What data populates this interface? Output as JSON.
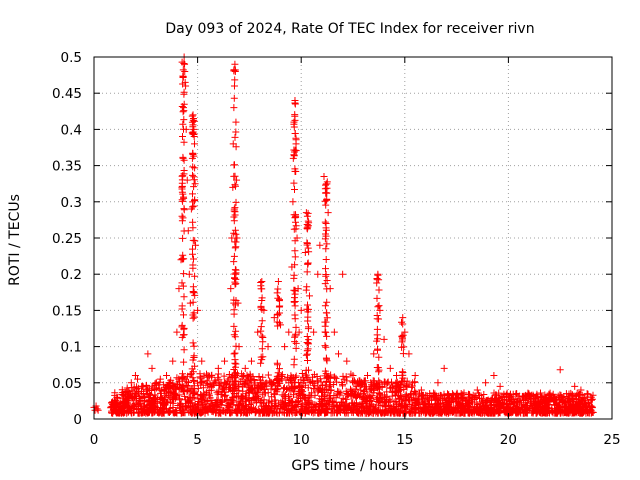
{
  "chart_data": {
    "type": "scatter",
    "title": "Day 093 of 2024, Rate Of TEC Index for receiver rivn",
    "xlabel": "GPS time / hours",
    "ylabel": "ROTI / TECUs",
    "xlim": [
      0,
      25
    ],
    "ylim": [
      0,
      0.5
    ],
    "xticks": [
      "0",
      "5",
      "10",
      "15",
      "20",
      "25"
    ],
    "yticks": [
      "0",
      "0.05",
      "0.1",
      "0.15",
      "0.2",
      "0.25",
      "0.3",
      "0.35",
      "0.4",
      "0.45",
      "0.5"
    ],
    "grid": true,
    "marker": "plus",
    "color": "#ff0000",
    "series": [
      {
        "points": [
          [
            0.0,
            0.016
          ],
          [
            0.05,
            0.012
          ],
          [
            0.1,
            0.018
          ],
          [
            0.15,
            0.014
          ],
          [
            0.2,
            0.012
          ],
          [
            0.9,
            0.02
          ],
          [
            1.0,
            0.025
          ],
          [
            1.1,
            0.03
          ],
          [
            1.2,
            0.022
          ],
          [
            1.4,
            0.028
          ],
          [
            1.6,
            0.04
          ],
          [
            1.8,
            0.05
          ],
          [
            2.0,
            0.06
          ],
          [
            2.1,
            0.055
          ],
          [
            2.3,
            0.045
          ],
          [
            2.6,
            0.09
          ],
          [
            2.8,
            0.07
          ],
          [
            3.0,
            0.05
          ],
          [
            3.2,
            0.055
          ],
          [
            3.5,
            0.06
          ],
          [
            3.8,
            0.08
          ],
          [
            4.0,
            0.12
          ],
          [
            4.1,
            0.18
          ],
          [
            4.2,
            0.22
          ],
          [
            4.25,
            0.28
          ],
          [
            4.3,
            0.36
          ],
          [
            4.32,
            0.43
          ],
          [
            4.35,
            0.5
          ],
          [
            4.37,
            0.49
          ],
          [
            4.38,
            0.48
          ],
          [
            4.4,
            0.465
          ],
          [
            4.42,
            0.46
          ],
          [
            4.45,
            0.4
          ],
          [
            4.5,
            0.33
          ],
          [
            4.55,
            0.26
          ],
          [
            4.6,
            0.2
          ],
          [
            4.65,
            0.16
          ],
          [
            4.7,
            0.29
          ],
          [
            4.75,
            0.36
          ],
          [
            4.78,
            0.42
          ],
          [
            4.8,
            0.415
          ],
          [
            4.82,
            0.4
          ],
          [
            4.85,
            0.38
          ],
          [
            4.88,
            0.325
          ],
          [
            4.9,
            0.24
          ],
          [
            5.0,
            0.15
          ],
          [
            5.2,
            0.08
          ],
          [
            5.5,
            0.06
          ],
          [
            5.8,
            0.05
          ],
          [
            6.0,
            0.07
          ],
          [
            6.3,
            0.08
          ],
          [
            6.6,
            0.18
          ],
          [
            6.65,
            0.25
          ],
          [
            6.7,
            0.32
          ],
          [
            6.72,
            0.38
          ],
          [
            6.75,
            0.43
          ],
          [
            6.78,
            0.46
          ],
          [
            6.8,
            0.49
          ],
          [
            6.82,
            0.48
          ],
          [
            6.85,
            0.41
          ],
          [
            6.88,
            0.33
          ],
          [
            6.9,
            0.25
          ],
          [
            6.95,
            0.16
          ],
          [
            7.0,
            0.1
          ],
          [
            7.3,
            0.07
          ],
          [
            7.6,
            0.08
          ],
          [
            7.9,
            0.12
          ],
          [
            8.1,
            0.19
          ],
          [
            8.2,
            0.15
          ],
          [
            8.4,
            0.1
          ],
          [
            8.7,
            0.14
          ],
          [
            8.9,
            0.19
          ],
          [
            9.0,
            0.13
          ],
          [
            9.2,
            0.1
          ],
          [
            9.4,
            0.12
          ],
          [
            9.55,
            0.21
          ],
          [
            9.6,
            0.3
          ],
          [
            9.62,
            0.36
          ],
          [
            9.65,
            0.41
          ],
          [
            9.7,
            0.44
          ],
          [
            9.72,
            0.435
          ],
          [
            9.75,
            0.38
          ],
          [
            9.8,
            0.25
          ],
          [
            9.85,
            0.18
          ],
          [
            9.9,
            0.12
          ],
          [
            10.0,
            0.15
          ],
          [
            10.2,
            0.23
          ],
          [
            10.25,
            0.285
          ],
          [
            10.3,
            0.28
          ],
          [
            10.4,
            0.17
          ],
          [
            10.6,
            0.12
          ],
          [
            10.8,
            0.2
          ],
          [
            10.9,
            0.24
          ],
          [
            11.1,
            0.335
          ],
          [
            11.2,
            0.27
          ],
          [
            11.3,
            0.285
          ],
          [
            11.4,
            0.18
          ],
          [
            11.6,
            0.12
          ],
          [
            11.8,
            0.09
          ],
          [
            12.0,
            0.2
          ],
          [
            12.2,
            0.08
          ],
          [
            12.5,
            0.06
          ],
          [
            12.9,
            0.05
          ],
          [
            13.2,
            0.06
          ],
          [
            13.5,
            0.09
          ],
          [
            13.7,
            0.2
          ],
          [
            13.8,
            0.15
          ],
          [
            14.0,
            0.11
          ],
          [
            14.3,
            0.07
          ],
          [
            14.6,
            0.06
          ],
          [
            14.9,
            0.14
          ],
          [
            15.0,
            0.12
          ],
          [
            15.2,
            0.09
          ],
          [
            15.5,
            0.06
          ],
          [
            15.8,
            0.04
          ],
          [
            16.2,
            0.035
          ],
          [
            16.6,
            0.05
          ],
          [
            16.9,
            0.07
          ],
          [
            17.3,
            0.035
          ],
          [
            17.7,
            0.03
          ],
          [
            18.1,
            0.03
          ],
          [
            18.5,
            0.04
          ],
          [
            18.9,
            0.05
          ],
          [
            19.3,
            0.06
          ],
          [
            19.6,
            0.045
          ],
          [
            20.0,
            0.03
          ],
          [
            20.4,
            0.035
          ],
          [
            20.8,
            0.03
          ],
          [
            21.2,
            0.025
          ],
          [
            21.6,
            0.03
          ],
          [
            22.0,
            0.03
          ],
          [
            22.5,
            0.068
          ],
          [
            22.8,
            0.035
          ],
          [
            23.2,
            0.045
          ],
          [
            23.5,
            0.04
          ],
          [
            23.8,
            0.035
          ],
          [
            24.0,
            0.03
          ]
        ]
      }
    ]
  }
}
